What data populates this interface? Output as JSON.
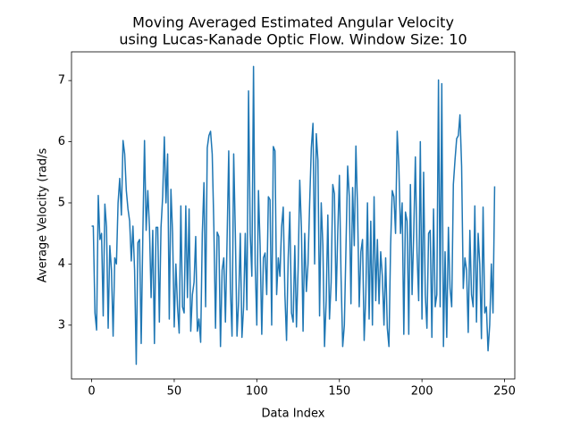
{
  "chart_data": {
    "type": "line",
    "title": [
      "Moving Averaged Estimated Angular Velocity",
      "using Lucas-Kanade Optic Flow. Window Size: 10"
    ],
    "xlabel": "Data Index",
    "ylabel": "Average Velocity (rad/s",
    "x": [
      0,
      1,
      2,
      3,
      4,
      5,
      6,
      7,
      8,
      9,
      10,
      11,
      12,
      13,
      14,
      15,
      16,
      17,
      18,
      19,
      20,
      21,
      22,
      23,
      24,
      25,
      26,
      27,
      28,
      29,
      30,
      31,
      32,
      33,
      34,
      35,
      36,
      37,
      38,
      39,
      40,
      41,
      42,
      43,
      44,
      45,
      46,
      47,
      48,
      49,
      50,
      51,
      52,
      53,
      54,
      55,
      56,
      57,
      58,
      59,
      60,
      61,
      62,
      63,
      64,
      65,
      66,
      67,
      68,
      69,
      70,
      71,
      72,
      73,
      74,
      75,
      76,
      77,
      78,
      79,
      80,
      81,
      82,
      83,
      84,
      85,
      86,
      87,
      88,
      89,
      90,
      91,
      92,
      93,
      94,
      95,
      96,
      97,
      98,
      99,
      100,
      101,
      102,
      103,
      104,
      105,
      106,
      107,
      108,
      109,
      110,
      111,
      112,
      113,
      114,
      115,
      116,
      117,
      118,
      119,
      120,
      121,
      122,
      123,
      124,
      125,
      126,
      127,
      128,
      129,
      130,
      131,
      132,
      133,
      134,
      135,
      136,
      137,
      138,
      139,
      140,
      141,
      142,
      143,
      144,
      145,
      146,
      147,
      148,
      149,
      150,
      151,
      152,
      153,
      154,
      155,
      156,
      157,
      158,
      159,
      160,
      161,
      162,
      163,
      164,
      165,
      166,
      167,
      168,
      169,
      170,
      171,
      172,
      173,
      174,
      175,
      176,
      177,
      178,
      179,
      180,
      181,
      182,
      183,
      184,
      185,
      186,
      187,
      188,
      189,
      190,
      191,
      192,
      193,
      194,
      195,
      196,
      197,
      198,
      199,
      200,
      201,
      202,
      203,
      204,
      205,
      206,
      207,
      208,
      209,
      210,
      211,
      212,
      213,
      214,
      215,
      216,
      217,
      218,
      219,
      220,
      221,
      222,
      223,
      224,
      225,
      226,
      227,
      228,
      229,
      230,
      231,
      232,
      233,
      234,
      235,
      236,
      237,
      238,
      239,
      240,
      241,
      242,
      243,
      244
    ],
    "series": [
      {
        "color": "#1f77b4",
        "values": [
          4.62,
          4.62,
          3.2,
          2.92,
          5.12,
          4.4,
          4.5,
          3.15,
          4.98,
          4.6,
          2.95,
          4.3,
          3.9,
          2.82,
          4.1,
          4.0,
          5.0,
          5.4,
          4.8,
          6.02,
          5.8,
          5.2,
          4.9,
          4.7,
          4.05,
          4.62,
          3.9,
          2.36,
          4.35,
          4.4,
          2.7,
          4.5,
          6.02,
          4.55,
          5.2,
          4.6,
          3.45,
          4.55,
          2.7,
          4.6,
          4.6,
          3.05,
          4.6,
          5.1,
          6.08,
          5.0,
          5.8,
          3.1,
          5.22,
          4.5,
          2.97,
          4.0,
          3.3,
          2.87,
          4.95,
          3.3,
          3.2,
          4.95,
          3.45,
          4.9,
          2.9,
          3.5,
          3.7,
          4.45,
          2.9,
          3.1,
          2.72,
          4.5,
          5.33,
          3.3,
          5.9,
          6.1,
          6.17,
          5.8,
          4.6,
          2.95,
          4.52,
          4.45,
          2.65,
          3.9,
          4.1,
          3.05,
          4.4,
          5.85,
          3.6,
          2.82,
          5.8,
          4.5,
          2.82,
          3.4,
          4.5,
          2.8,
          3.3,
          4.5,
          3.25,
          6.83,
          4.5,
          3.8,
          7.23,
          4.0,
          3.0,
          5.2,
          4.3,
          2.85,
          4.1,
          4.18,
          3.5,
          5.1,
          5.05,
          3.0,
          5.92,
          5.85,
          3.5,
          4.1,
          3.8,
          4.6,
          4.93,
          3.5,
          2.75,
          4.1,
          4.85,
          3.2,
          3.05,
          4.3,
          2.97,
          3.9,
          5.37,
          4.6,
          2.9,
          4.5,
          3.55,
          4.0,
          5.0,
          5.9,
          6.3,
          4.0,
          6.13,
          5.7,
          3.15,
          5.0,
          4.3,
          2.65,
          3.4,
          4.8,
          3.1,
          3.7,
          5.3,
          5.15,
          3.4,
          4.5,
          5.45,
          3.8,
          2.65,
          3.0,
          4.3,
          5.6,
          5.1,
          3.35,
          5.25,
          4.3,
          5.93,
          4.9,
          3.3,
          4.2,
          4.4,
          2.75,
          3.5,
          5.0,
          3.1,
          4.7,
          3.0,
          5.1,
          3.4,
          4.4,
          3.35,
          4.2,
          3.8,
          3.0,
          4.1,
          2.95,
          2.65,
          4.3,
          5.2,
          5.1,
          4.5,
          6.17,
          5.6,
          4.5,
          5.0,
          2.85,
          4.85,
          4.7,
          2.85,
          5.3,
          3.5,
          4.5,
          5.75,
          4.2,
          3.4,
          6.0,
          3.1,
          5.5,
          3.5,
          2.95,
          4.5,
          4.55,
          2.8,
          4.9,
          3.3,
          3.5,
          7.01,
          3.3,
          6.95,
          2.65,
          4.2,
          2.8,
          4.6,
          3.6,
          3.3,
          5.3,
          5.7,
          6.05,
          6.1,
          6.44,
          5.6,
          3.6,
          4.1,
          3.9,
          2.88,
          4.55,
          3.5,
          3.3,
          4.95,
          3.05,
          4.5,
          4.0,
          2.78,
          4.93,
          3.2,
          3.3,
          2.58,
          3.0,
          4.0,
          3.2,
          5.27
        ]
      }
    ],
    "xlim": [
      -12.2,
      256.2
    ],
    "ylim": [
      2.12,
      7.47
    ],
    "xticks": [
      0,
      50,
      100,
      150,
      200,
      250
    ],
    "yticks": [
      3,
      4,
      5,
      6,
      7
    ]
  }
}
